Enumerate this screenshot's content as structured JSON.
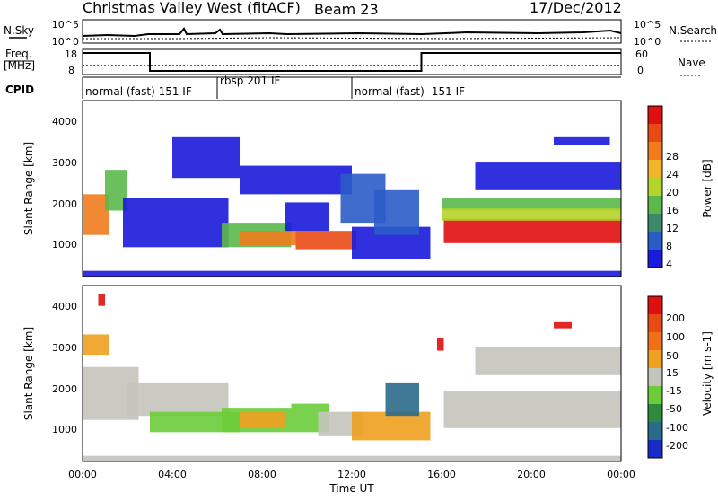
{
  "header": {
    "station": "Christmas Valley West (fitACF)",
    "beam": "Beam 23",
    "date": "17/Dec/2012"
  },
  "noise_panel": {
    "left_label": "N.Sky",
    "right_label": "N.Search",
    "ticks_left": [
      "10^5",
      "10^0"
    ],
    "ticks_right": [
      "10^5",
      "10^0"
    ]
  },
  "freq_panel": {
    "left_label_1": "Freq.",
    "left_label_2": "[MHz]",
    "right_label": "Nave",
    "ticks_left": [
      "18",
      "8"
    ],
    "ticks_right": [
      "60",
      "0"
    ],
    "freq_high": 18,
    "freq_low": 8,
    "freq_change_hours": [
      3.0,
      15.1
    ]
  },
  "cpid": {
    "label": "CPID",
    "segments": [
      {
        "label": "normal (fast) 151 IF",
        "start": 0,
        "end": 6.0
      },
      {
        "label": "rbsp 201 IF",
        "start": 6.0,
        "end": 12.0
      },
      {
        "label": "normal (fast) -151 IF",
        "start": 12.0,
        "end": 24.0
      }
    ]
  },
  "x_axis": {
    "title": "Time UT",
    "ticks": [
      "00:00",
      "04:00",
      "08:00",
      "12:00",
      "16:00",
      "20:00",
      "00:00"
    ]
  },
  "power_panel": {
    "ylabel": "Slant Range [km]",
    "yticks": [
      "4000",
      "3000",
      "2000",
      "1000"
    ],
    "colorbar_label": "Power [dB]",
    "colorbar_ticks": [
      "28",
      "24",
      "20",
      "16",
      "12",
      "8",
      "4"
    ],
    "colors": [
      "#1a1adb",
      "#2a5cc8",
      "#3c8a6a",
      "#5bb84a",
      "#b4d42a",
      "#f2b52a",
      "#f07c1e",
      "#e84a14",
      "#e01010"
    ]
  },
  "velocity_panel": {
    "ylabel": "Slant Range [km]",
    "yticks": [
      "4000",
      "3000",
      "2000",
      "1000"
    ],
    "colorbar_label": "Velocity [m s-1]",
    "colorbar_ticks": [
      "200",
      "100",
      "50",
      "15",
      "-15",
      "-50",
      "-100",
      "-200"
    ],
    "colors": [
      "#1a2cc8",
      "#2a6a8a",
      "#2e8a3c",
      "#6ccc3a",
      "#c4c4bc",
      "#f0a020",
      "#f07018",
      "#e84a14",
      "#e01010"
    ]
  },
  "chart_data": {
    "type": "heatmap",
    "x_range_hours": [
      0,
      24
    ],
    "y_range_km": [
      180,
      4500
    ],
    "power_regions": [
      {
        "t0": 0.0,
        "t1": 1.2,
        "r0": 1200,
        "r1": 2200,
        "level": 6
      },
      {
        "t0": 1.0,
        "t1": 2.0,
        "r0": 1800,
        "r1": 2800,
        "level": 3
      },
      {
        "t0": 1.8,
        "t1": 6.5,
        "r0": 900,
        "r1": 2100,
        "level": 0
      },
      {
        "t0": 4.0,
        "t1": 7.0,
        "r0": 2600,
        "r1": 3600,
        "level": 0
      },
      {
        "t0": 6.2,
        "t1": 9.3,
        "r0": 900,
        "r1": 1500,
        "level": 3
      },
      {
        "t0": 7.0,
        "t1": 9.5,
        "r0": 950,
        "r1": 1300,
        "level": 6
      },
      {
        "t0": 7.0,
        "t1": 12.0,
        "r0": 2200,
        "r1": 2900,
        "level": 0
      },
      {
        "t0": 9.5,
        "t1": 12.2,
        "r0": 850,
        "r1": 1300,
        "level": 7
      },
      {
        "t0": 9.0,
        "t1": 11.0,
        "r0": 1300,
        "r1": 2000,
        "level": 0
      },
      {
        "t0": 11.5,
        "t1": 13.5,
        "r0": 1500,
        "r1": 2700,
        "level": 1
      },
      {
        "t0": 12.0,
        "t1": 15.5,
        "r0": 600,
        "r1": 1400,
        "level": 0
      },
      {
        "t0": 13.0,
        "t1": 15.0,
        "r0": 1200,
        "r1": 2300,
        "level": 1
      },
      {
        "t0": 16.0,
        "t1": 24.0,
        "r0": 1800,
        "r1": 2100,
        "level": 3
      },
      {
        "t0": 16.1,
        "t1": 24.0,
        "r0": 1000,
        "r1": 1600,
        "level": 8
      },
      {
        "t0": 16.0,
        "t1": 24.0,
        "r0": 1550,
        "r1": 1850,
        "level": 4
      },
      {
        "t0": 17.5,
        "t1": 24.0,
        "r0": 2300,
        "r1": 3000,
        "level": 0
      },
      {
        "t0": 21.0,
        "t1": 23.5,
        "r0": 3400,
        "r1": 3600,
        "level": 0
      },
      {
        "t0": 0.0,
        "t1": 24.0,
        "r0": 180,
        "r1": 320,
        "level": 0
      }
    ],
    "velocity_regions": [
      {
        "t0": 0.0,
        "t1": 2.5,
        "r0": 1200,
        "r1": 2500,
        "level": 4
      },
      {
        "t0": 0.0,
        "t1": 1.2,
        "r0": 2800,
        "r1": 3300,
        "level": 5
      },
      {
        "t0": 0.7,
        "t1": 1.0,
        "r0": 4000,
        "r1": 4300,
        "level": 8
      },
      {
        "t0": 2.0,
        "t1": 6.5,
        "r0": 1300,
        "r1": 2100,
        "level": 4
      },
      {
        "t0": 3.0,
        "t1": 7.0,
        "r0": 900,
        "r1": 1400,
        "level": 3
      },
      {
        "t0": 6.2,
        "t1": 9.3,
        "r0": 900,
        "r1": 1500,
        "level": 3
      },
      {
        "t0": 7.0,
        "t1": 9.0,
        "r0": 1000,
        "r1": 1400,
        "level": 5
      },
      {
        "t0": 9.3,
        "t1": 11.0,
        "r0": 900,
        "r1": 1600,
        "level": 3
      },
      {
        "t0": 10.5,
        "t1": 12.5,
        "r0": 800,
        "r1": 1400,
        "level": 4
      },
      {
        "t0": 12.0,
        "t1": 15.5,
        "r0": 700,
        "r1": 1400,
        "level": 5
      },
      {
        "t0": 13.5,
        "t1": 15.0,
        "r0": 1300,
        "r1": 2100,
        "level": 1
      },
      {
        "t0": 16.1,
        "t1": 24.0,
        "r0": 1000,
        "r1": 1900,
        "level": 4
      },
      {
        "t0": 17.5,
        "t1": 24.0,
        "r0": 2300,
        "r1": 3000,
        "level": 4
      },
      {
        "t0": 21.0,
        "t1": 21.8,
        "r0": 3450,
        "r1": 3600,
        "level": 8
      },
      {
        "t0": 15.8,
        "t1": 16.1,
        "r0": 2900,
        "r1": 3200,
        "level": 8
      },
      {
        "t0": 0.0,
        "t1": 24.0,
        "r0": 180,
        "r1": 320,
        "level": 4
      }
    ]
  }
}
